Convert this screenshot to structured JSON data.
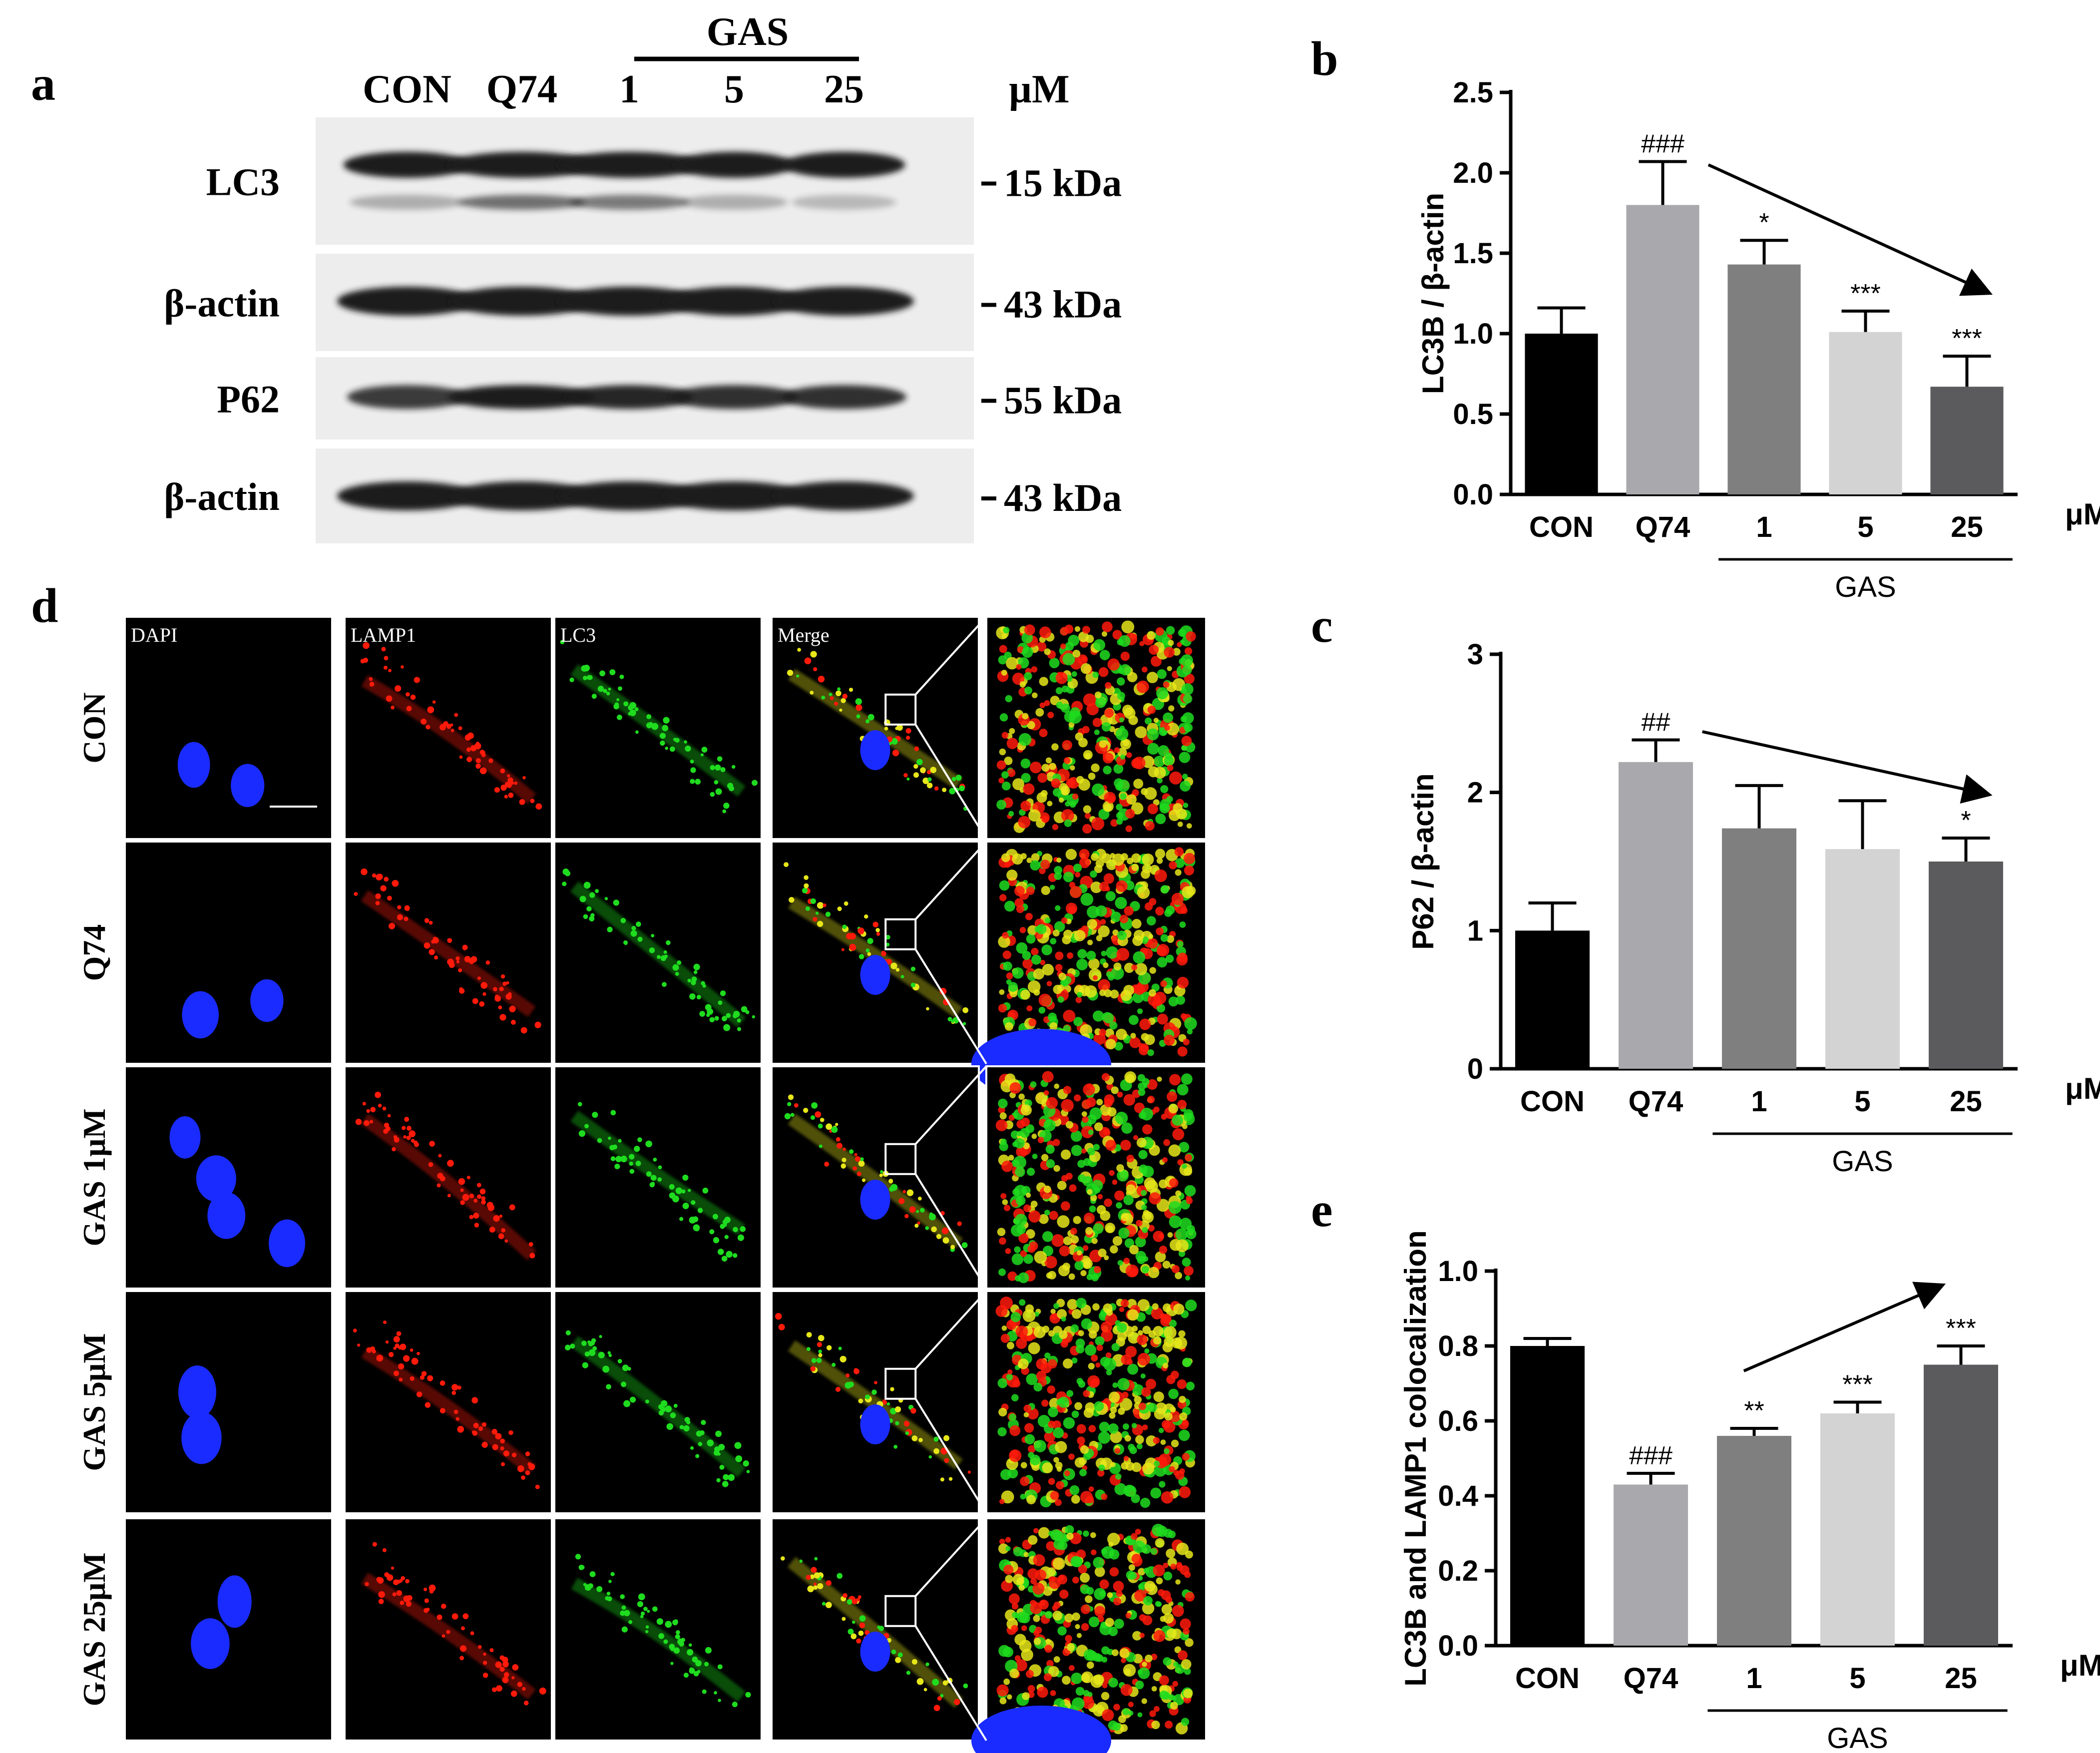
{
  "panel_letters": {
    "a": "a",
    "b": "b",
    "c": "c",
    "d": "d",
    "e": "e"
  },
  "western_blot": {
    "lanes": [
      "CON",
      "Q74",
      "1",
      "5",
      "25"
    ],
    "group_label": "GAS",
    "unit": "µM",
    "rows": [
      {
        "label": "LC3",
        "marker": "15 kDa"
      },
      {
        "label": "β-actin",
        "marker": "43 kDa"
      },
      {
        "label": "P62",
        "marker": "55 kDa"
      },
      {
        "label": "β-actin",
        "marker": "43 kDa"
      }
    ]
  },
  "microscopy": {
    "columns": [
      "DAPI",
      "LAMP1",
      "LC3",
      "Merge"
    ],
    "rows": [
      "CON",
      "Q74",
      "GAS 1μM",
      "GAS 5μM",
      "GAS 25μM"
    ],
    "colors": {
      "dapi": "#1a2bff",
      "lamp1": "#ff1a0a",
      "lc3": "#1fdc1f",
      "merge_yellow": "#e6e61a"
    }
  },
  "chart_data": [
    {
      "id": "b",
      "type": "bar",
      "categories": [
        "CON",
        "Q74",
        "1",
        "5",
        "25"
      ],
      "values": [
        1.0,
        1.8,
        1.43,
        1.01,
        0.67
      ],
      "errors": [
        0.16,
        0.27,
        0.15,
        0.13,
        0.19
      ],
      "significance": [
        "",
        "###",
        "*",
        "***",
        "***"
      ],
      "ylabel": "LC3B / β-actin",
      "ylim": [
        0,
        2.5
      ],
      "yticks": [
        0.0,
        0.5,
        1.0,
        1.5,
        2.0,
        2.5
      ],
      "ytick_labels": [
        "0.0",
        "0.5",
        "1.0",
        "1.5",
        "2.0",
        "2.5"
      ],
      "unit": "μM",
      "group_label": "GAS",
      "bar_colors": [
        "#000000",
        "#a9a9ad",
        "#7f7f80",
        "#d3d3d3",
        "#5b5b5e"
      ],
      "trend": "down"
    },
    {
      "id": "c",
      "type": "bar",
      "categories": [
        "CON",
        "Q74",
        "1",
        "5",
        "25"
      ],
      "values": [
        1.0,
        2.22,
        1.74,
        1.59,
        1.5
      ],
      "errors": [
        0.2,
        0.16,
        0.31,
        0.35,
        0.17
      ],
      "significance": [
        "",
        "##",
        "",
        "",
        "*"
      ],
      "ylabel": "P62 / β-actin",
      "ylim": [
        0,
        3
      ],
      "yticks": [
        0,
        1,
        2,
        3
      ],
      "ytick_labels": [
        "0",
        "1",
        "2",
        "3"
      ],
      "unit": "μM",
      "group_label": "GAS",
      "bar_colors": [
        "#000000",
        "#a9a9ad",
        "#7f7f80",
        "#d3d3d3",
        "#5b5b5e"
      ],
      "trend": "down"
    },
    {
      "id": "e",
      "type": "bar",
      "categories": [
        "CON",
        "Q74",
        "1",
        "5",
        "25"
      ],
      "values": [
        0.8,
        0.43,
        0.56,
        0.62,
        0.75
      ],
      "errors": [
        0.02,
        0.03,
        0.02,
        0.03,
        0.05
      ],
      "significance": [
        "",
        "###",
        "**",
        "***",
        "***"
      ],
      "ylabel": "LC3B and LAMP1 colocalization",
      "ylim": [
        0,
        1.0
      ],
      "yticks": [
        0.0,
        0.2,
        0.4,
        0.6,
        0.8,
        1.0
      ],
      "ytick_labels": [
        "0.0",
        "0.2",
        "0.4",
        "0.6",
        "0.8",
        "1.0"
      ],
      "unit": "μM",
      "group_label": "GAS",
      "bar_colors": [
        "#000000",
        "#a9a9ad",
        "#7f7f80",
        "#d3d3d3",
        "#5b5b5e"
      ],
      "trend": "up"
    }
  ]
}
